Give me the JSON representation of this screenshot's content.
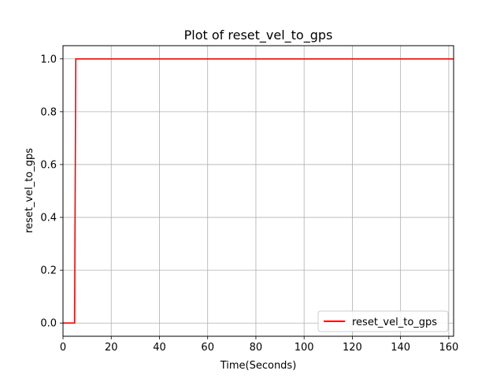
{
  "chart_data": {
    "type": "line",
    "title": "Plot of reset_vel_to_gps",
    "xlabel": "Time(Seconds)",
    "ylabel": "reset_vel_to_gps",
    "xlim": [
      0,
      162
    ],
    "ylim": [
      -0.05,
      1.05
    ],
    "xticks": [
      0,
      20,
      40,
      60,
      80,
      100,
      120,
      140,
      160
    ],
    "yticks": [
      0.0,
      0.2,
      0.4,
      0.6,
      0.8,
      1.0
    ],
    "xtick_labels": [
      "0",
      "20",
      "40",
      "60",
      "80",
      "100",
      "120",
      "140",
      "160"
    ],
    "ytick_labels": [
      "0.0",
      "0.2",
      "0.4",
      "0.6",
      "0.8",
      "1.0"
    ],
    "grid": true,
    "legend_position": "lower-right",
    "series": [
      {
        "name": "reset_vel_to_gps",
        "color": "#ff0000",
        "x": [
          0,
          4.8,
          4.8,
          5.3,
          162
        ],
        "y": [
          0,
          0,
          0,
          1,
          1
        ]
      }
    ]
  }
}
